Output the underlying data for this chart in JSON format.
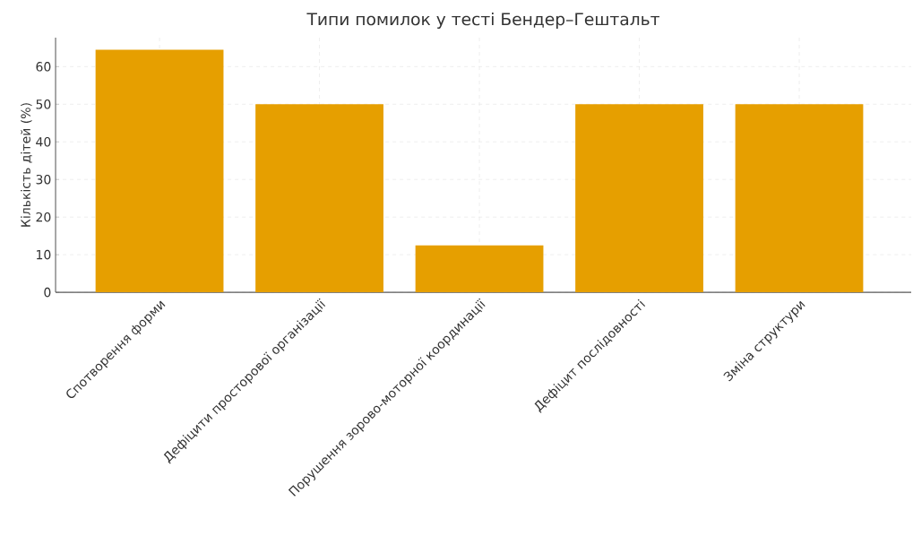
{
  "chart_data": {
    "type": "bar",
    "title": "Типи помилок у тесті Бендер–Гештальт",
    "ylabel": "Кількість дітей (%)",
    "categories": [
      "Спотворення форми",
      "Дефіцити просторової організації",
      "Порушення зорово-моторної координації",
      "Дефіцит послідовності",
      "Зміна структури"
    ],
    "values": [
      64.5,
      50,
      12.5,
      50,
      50
    ],
    "color": "#e69f00",
    "ylim": [
      0,
      67.7
    ],
    "yticks": [
      0,
      10,
      20,
      30,
      40,
      50,
      60
    ],
    "grid": true
  }
}
